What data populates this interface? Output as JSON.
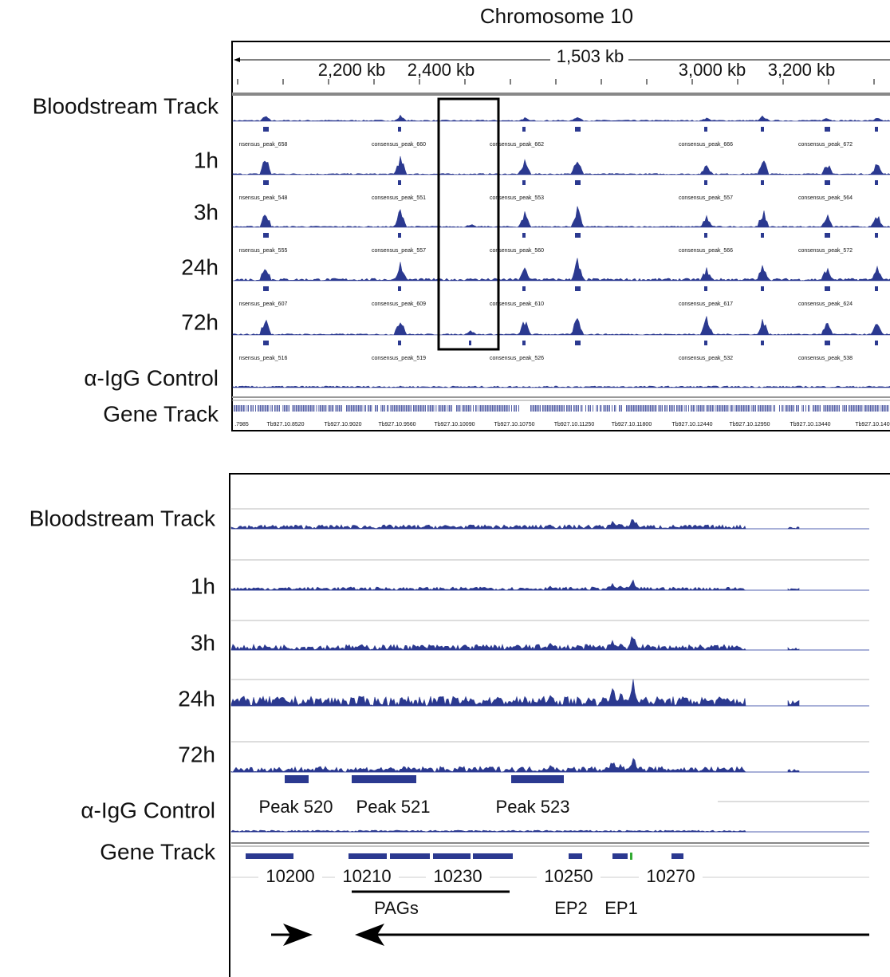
{
  "top_panel": {
    "title": "Chromosome 10",
    "ruler": {
      "span": "1,503 kb",
      "ticks": [
        "2,200 kb",
        "2,400 kb",
        "3,000 kb",
        "3,200 kb"
      ]
    },
    "tracks": [
      {
        "label": "Bloodstream Track",
        "peaks": [
          "nsensus_peak_658",
          "consensus_peak_660",
          "consensus_peak_662",
          "consensus_peak_666",
          "consensus_peak_672"
        ]
      },
      {
        "label": "1h",
        "peaks": [
          "nsensus_peak_548",
          "consensus_peak_551",
          "consensus_peak_553",
          "consensus_peak_557",
          "consensus_peak_564"
        ]
      },
      {
        "label": "3h",
        "peaks": [
          "nsensus_peak_555",
          "consensus_peak_557",
          "consensus_peak_560",
          "consensus_peak_566",
          "consensus_peak_572"
        ]
      },
      {
        "label": "24h",
        "peaks": [
          "nsensus_peak_607",
          "consensus_peak_609",
          "consensus_peak_610",
          "consensus_peak_617",
          "consensus_peak_624"
        ]
      },
      {
        "label": "72h",
        "peaks": [
          "nsensus_peak_516",
          "consensus_peak_519",
          "consensus_peak_526",
          "consensus_peak_532",
          "consensus_peak_538"
        ]
      }
    ],
    "control": "α-IgG Control",
    "gene_track": {
      "label": "Gene Track",
      "genes": [
        ".7985",
        "Tb927.10.8520",
        "Tb927.10.9020",
        "Tb927.10.9560",
        "Tb927.10.10090",
        "Tb927.10.10750",
        "Tb927.10.11250",
        "Tb927.10.11800",
        "Tb927.10.12440",
        "Tb927.10.12950",
        "Tb927.10.13440",
        "Tb927.10.140"
      ]
    }
  },
  "bottom_panel": {
    "tracks": [
      "Bloodstream Track",
      "1h",
      "3h",
      "24h",
      "72h",
      "α-IgG Control"
    ],
    "peaks": [
      "Peak 520",
      "Peak 521",
      "Peak 523"
    ],
    "gene_track": {
      "label": "Gene Track",
      "genes": [
        "10200",
        "10210",
        "10230",
        "10250",
        "10270"
      ]
    },
    "annotations": [
      "PAGs",
      "EP2",
      "EP1"
    ]
  }
}
